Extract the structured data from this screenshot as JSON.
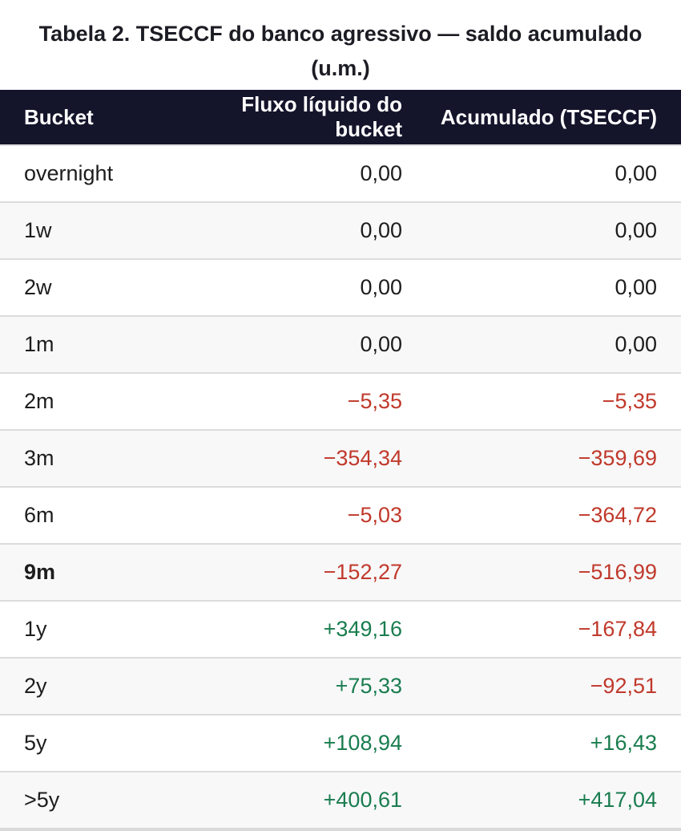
{
  "title": {
    "line1": "Tabela 2. TSECCF do banco agressivo — saldo acumulado",
    "line2": "(u.m.)"
  },
  "table": {
    "columns": [
      "Bucket",
      "Fluxo líquido do bucket",
      "Acumulado (TSECCF)"
    ],
    "rows": [
      {
        "bucket": "overnight",
        "flow": "0,00",
        "flow_tone": "neutral",
        "cum": "0,00",
        "cum_tone": "neutral",
        "bold": false
      },
      {
        "bucket": "1w",
        "flow": "0,00",
        "flow_tone": "neutral",
        "cum": "0,00",
        "cum_tone": "neutral",
        "bold": false
      },
      {
        "bucket": "2w",
        "flow": "0,00",
        "flow_tone": "neutral",
        "cum": "0,00",
        "cum_tone": "neutral",
        "bold": false
      },
      {
        "bucket": "1m",
        "flow": "0,00",
        "flow_tone": "neutral",
        "cum": "0,00",
        "cum_tone": "neutral",
        "bold": false
      },
      {
        "bucket": "2m",
        "flow": "−5,35",
        "flow_tone": "negative",
        "cum": "−5,35",
        "cum_tone": "negative",
        "bold": false
      },
      {
        "bucket": "3m",
        "flow": "−354,34",
        "flow_tone": "negative",
        "cum": "−359,69",
        "cum_tone": "negative",
        "bold": false
      },
      {
        "bucket": "6m",
        "flow": "−5,03",
        "flow_tone": "negative",
        "cum": "−364,72",
        "cum_tone": "negative",
        "bold": false
      },
      {
        "bucket": "9m",
        "flow": "−152,27",
        "flow_tone": "negative",
        "cum": "−516,99",
        "cum_tone": "negative",
        "bold": true
      },
      {
        "bucket": "1y",
        "flow": "+349,16",
        "flow_tone": "positive",
        "cum": "−167,84",
        "cum_tone": "negative",
        "bold": false
      },
      {
        "bucket": "2y",
        "flow": "+75,33",
        "flow_tone": "positive",
        "cum": "−92,51",
        "cum_tone": "negative",
        "bold": false
      },
      {
        "bucket": "5y",
        "flow": "+108,94",
        "flow_tone": "positive",
        "cum": "+16,43",
        "cum_tone": "positive",
        "bold": false
      },
      {
        "bucket": ">5y",
        "flow": "+400,61",
        "flow_tone": "positive",
        "cum": "+417,04",
        "cum_tone": "positive",
        "bold": false
      }
    ]
  },
  "colors": {
    "header_bg": "#14142b",
    "header_fg": "#ffffff",
    "title_color": "#1c1c24",
    "cell_fg": "#1d1d1d",
    "alt_row_bg": "#f8f8f9",
    "negative": "#c0392b",
    "positive": "#1a7d4f",
    "separator": "#dcdcdc"
  },
  "chart_data": {
    "type": "table",
    "title": "Tabela 2. TSECCF do banco agressivo — saldo acumulado (u.m.)",
    "columns": [
      "Bucket",
      "Fluxo líquido do bucket",
      "Acumulado (TSECCF)"
    ],
    "buckets": [
      "overnight",
      "1w",
      "2w",
      "1m",
      "2m",
      "3m",
      "6m",
      "9m",
      "1y",
      "2y",
      "5y",
      ">5y"
    ],
    "series": [
      {
        "name": "Fluxo líquido do bucket",
        "values": [
          0.0,
          0.0,
          0.0,
          0.0,
          -5.35,
          -354.34,
          -5.03,
          -152.27,
          349.16,
          75.33,
          108.94,
          400.61
        ]
      },
      {
        "name": "Acumulado (TSECCF)",
        "values": [
          0.0,
          0.0,
          0.0,
          0.0,
          -5.35,
          -359.69,
          -364.72,
          -516.99,
          -167.84,
          -92.51,
          16.43,
          417.04
        ]
      }
    ],
    "notes": "Values in u.m.; decimal comma (pt-BR); negatives red, positives green, zeros dark; 9m bucket label bold"
  }
}
